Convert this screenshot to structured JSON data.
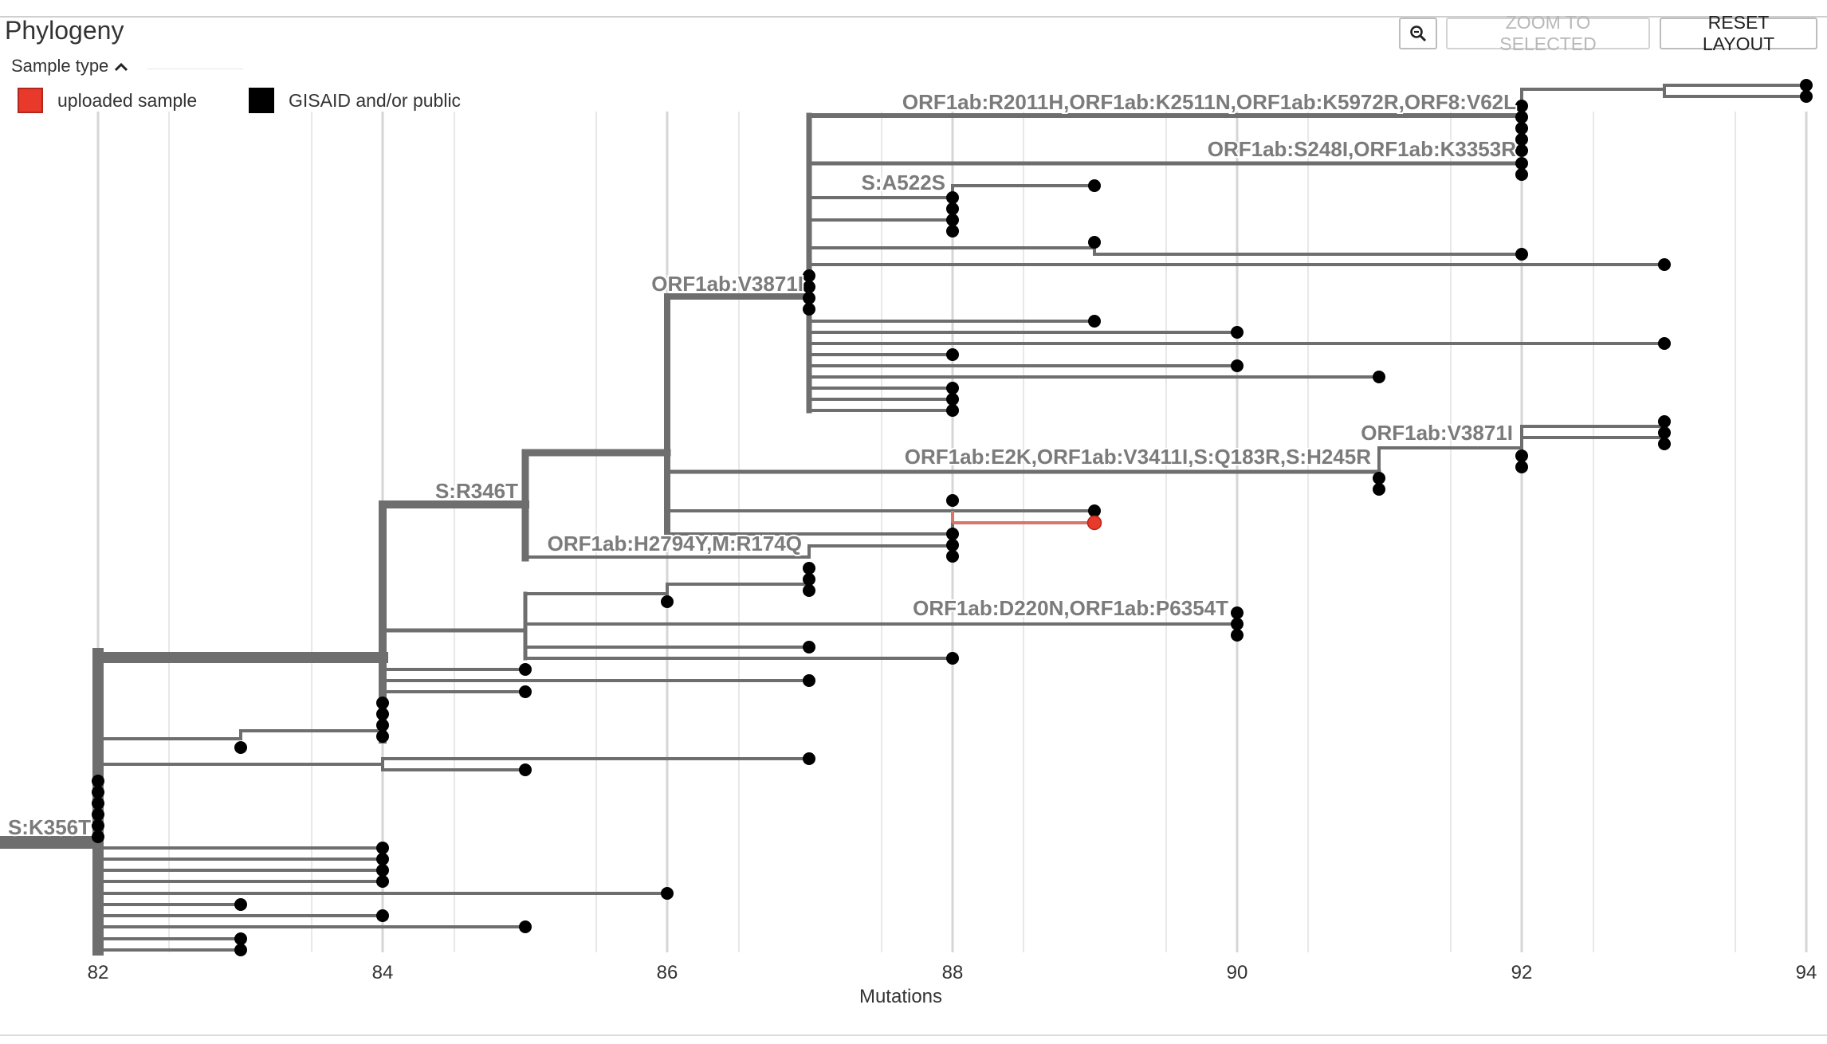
{
  "panel": {
    "title": "Phylogeny"
  },
  "toolbar": {
    "zoom_icon": "magnifier-icon",
    "zoom_selected_label": "ZOOM TO SELECTED",
    "reset_layout_label": "RESET LAYOUT"
  },
  "legend": {
    "toggle_label": "Sample type",
    "toggle_icon": "chevron-up-icon",
    "items": [
      {
        "label": "uploaded sample",
        "color": "#e8392b"
      },
      {
        "label": "GISAID and/or public",
        "color": "#000000"
      }
    ]
  },
  "colors": {
    "branch": "#6e6e6e",
    "highlight_branch": "#d9756b",
    "grid": "#e6e6e6",
    "grid_major": "#d8d8d8",
    "uploaded": "#e8392b",
    "public": "#000000"
  },
  "axis": {
    "title": "Mutations",
    "ticks": [
      "82",
      "84",
      "86",
      "88",
      "90",
      "92",
      "94"
    ]
  },
  "branch_labels": [
    "ORF1ab:R2011H,ORF1ab:K2511N,ORF1ab:K5972R,ORF8:V62L",
    "ORF1ab:S248I,ORF1ab:K3353R",
    "S:A522S",
    "ORF1ab:V3871I",
    "ORF1ab:V3871I",
    "ORF1ab:E2K,ORF1ab:V3411I,S:Q183R,S:H245R",
    "S:R346T",
    "ORF1ab:H2794Y,M:R174Q",
    "ORF1ab:D220N,ORF1ab:P6354T",
    "S:K356T"
  ]
}
